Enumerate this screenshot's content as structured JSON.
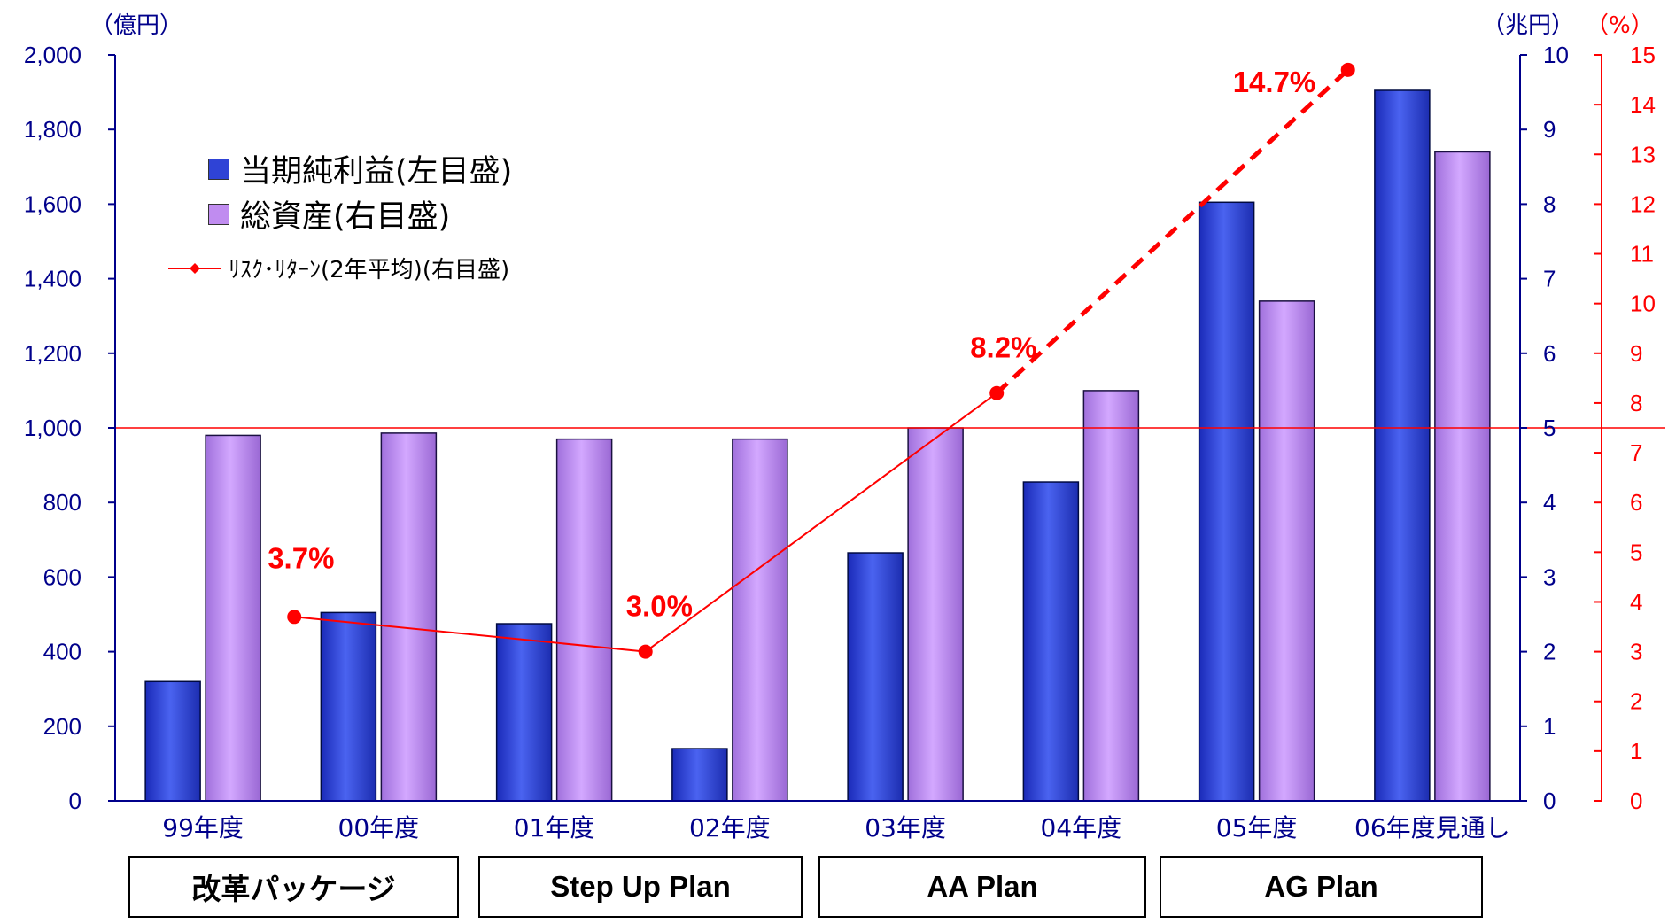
{
  "units": {
    "left": "（億円）",
    "right_total_assets": "（兆円）",
    "right_return": "（%）"
  },
  "legend": {
    "net_income": "当期純利益(左目盛)",
    "total_assets": "総資産(右目盛)",
    "risk_return": "ﾘｽｸ･ﾘﾀｰﾝ(2年平均)(右目盛)"
  },
  "plans": [
    "改革パッケージ",
    "Step Up Plan",
    "AA Plan",
    "AG Plan"
  ],
  "colors": {
    "net_income": "#2f43d6",
    "total_assets": "#c08cf0",
    "risk_return": "#ff0000",
    "left_axis": "#00008b",
    "right_axis_assets": "#00008b",
    "right_axis_return": "#ff0000"
  },
  "chart_data": {
    "type": "bar",
    "categories": [
      "99年度",
      "00年度",
      "01年度",
      "02年度",
      "03年度",
      "04年度",
      "05年度",
      "06年度見通し"
    ],
    "series": [
      {
        "name": "当期純利益(左目盛)",
        "axis": "left",
        "values": [
          320,
          505,
          475,
          140,
          665,
          855,
          1605,
          1905
        ]
      },
      {
        "name": "総資産(右目盛)",
        "axis": "right",
        "values": [
          4.9,
          4.93,
          4.85,
          4.85,
          5.0,
          5.5,
          6.7,
          8.7
        ]
      },
      {
        "name": "ﾘｽｸ･ﾘﾀｰﾝ(2年平均)(右目盛)",
        "type": "line",
        "axis": "right2",
        "x": [
          "00年度",
          "02年度",
          "04年度",
          "06年度見通し"
        ],
        "values": [
          3.7,
          3.0,
          8.2,
          14.7
        ],
        "segment_styles": [
          "solid",
          "solid",
          "dashed"
        ]
      }
    ],
    "data_labels": [
      "3.7%",
      "3.0%",
      "8.2%",
      "14.7%"
    ],
    "left_axis": {
      "ylim": [
        0,
        2000
      ],
      "ticks": [
        "0",
        "200",
        "400",
        "600",
        "800",
        "1,000",
        "1,200",
        "1,400",
        "1,600",
        "1,800",
        "2,000"
      ]
    },
    "right_axis": {
      "ylim": [
        0,
        10
      ],
      "ticks": [
        "0",
        "1",
        "2",
        "3",
        "4",
        "5",
        "6",
        "7",
        "8",
        "9",
        "10"
      ]
    },
    "right_axis2": {
      "ylim": [
        0,
        15
      ],
      "ticks": [
        "0",
        "1",
        "2",
        "3",
        "4",
        "5",
        "6",
        "7",
        "8",
        "9",
        "10",
        "11",
        "12",
        "13",
        "14",
        "15"
      ]
    },
    "reference_line": {
      "axis": "right",
      "value": 5
    },
    "grid": false
  }
}
